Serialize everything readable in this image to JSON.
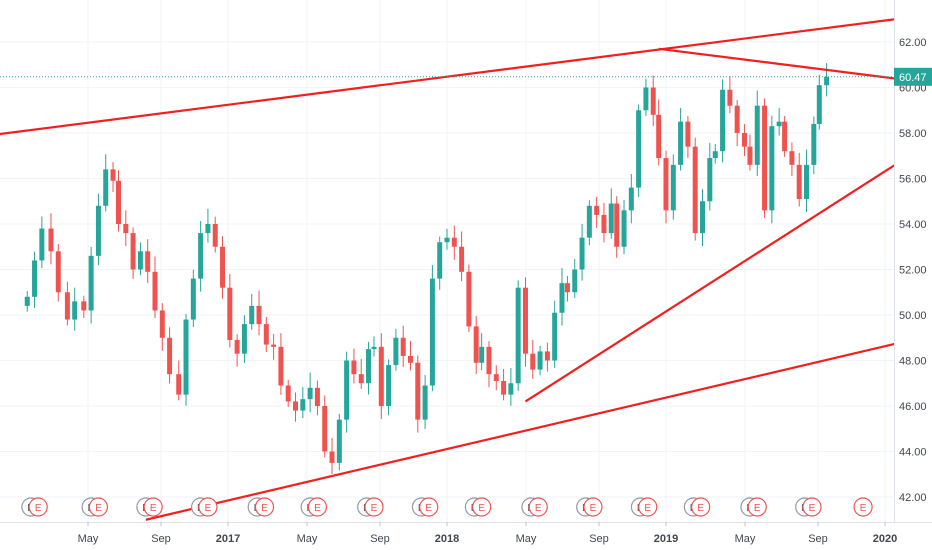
{
  "chart_data": {
    "type": "candlestick",
    "x_axis": {
      "labels": [
        "May",
        "Sep",
        "2017",
        "May",
        "Sep",
        "2018",
        "May",
        "Sep",
        "2019",
        "May",
        "Sep",
        "2020"
      ],
      "label_months": [
        4.33,
        8.33,
        12.0,
        16.33,
        20.33,
        24.0,
        28.33,
        32.33,
        36.0,
        40.33,
        44.33,
        48.0
      ],
      "major_labels": [
        "2017",
        "2018",
        "2019",
        "2020"
      ]
    },
    "y_axis": {
      "ticks": [
        "42.00",
        "44.00",
        "46.00",
        "48.00",
        "50.00",
        "52.00",
        "54.00",
        "56.00",
        "58.00",
        "60.00",
        "62.00"
      ],
      "range": [
        41.0,
        63.0
      ],
      "side": "right"
    },
    "current_price": {
      "value": 60.47,
      "label": "60.47"
    },
    "grid": true,
    "closes": [
      [
        1.0,
        50.8
      ],
      [
        1.4,
        52.4
      ],
      [
        1.8,
        53.8
      ],
      [
        2.3,
        52.8
      ],
      [
        2.7,
        51.0
      ],
      [
        3.2,
        49.8
      ],
      [
        3.6,
        50.6
      ],
      [
        4.1,
        50.2
      ],
      [
        4.5,
        52.6
      ],
      [
        4.9,
        54.8
      ],
      [
        5.3,
        56.4
      ],
      [
        5.7,
        55.9
      ],
      [
        6.0,
        54.0
      ],
      [
        6.4,
        53.6
      ],
      [
        6.8,
        52.0
      ],
      [
        7.2,
        52.8
      ],
      [
        7.6,
        51.9
      ],
      [
        8.0,
        50.2
      ],
      [
        8.4,
        49.0
      ],
      [
        8.8,
        47.4
      ],
      [
        9.3,
        46.5
      ],
      [
        9.7,
        49.8
      ],
      [
        10.1,
        51.6
      ],
      [
        10.5,
        53.6
      ],
      [
        10.9,
        54.0
      ],
      [
        11.3,
        53.0
      ],
      [
        11.7,
        51.2
      ],
      [
        12.1,
        48.9
      ],
      [
        12.5,
        48.3
      ],
      [
        12.9,
        49.6
      ],
      [
        13.3,
        50.4
      ],
      [
        13.7,
        49.6
      ],
      [
        14.1,
        48.7
      ],
      [
        14.5,
        48.6
      ],
      [
        14.9,
        46.9
      ],
      [
        15.3,
        46.2
      ],
      [
        15.7,
        45.8
      ],
      [
        16.1,
        46.3
      ],
      [
        16.5,
        46.8
      ],
      [
        16.9,
        46.0
      ],
      [
        17.3,
        44.0
      ],
      [
        17.7,
        43.5
      ],
      [
        18.1,
        45.4
      ],
      [
        18.5,
        48.0
      ],
      [
        18.9,
        47.4
      ],
      [
        19.3,
        47.0
      ],
      [
        19.7,
        48.5
      ],
      [
        20.0,
        48.6
      ],
      [
        20.4,
        46.0
      ],
      [
        20.8,
        47.8
      ],
      [
        21.2,
        49.0
      ],
      [
        21.6,
        48.2
      ],
      [
        22.0,
        47.9
      ],
      [
        22.4,
        45.4
      ],
      [
        22.8,
        46.9
      ],
      [
        23.2,
        51.6
      ],
      [
        23.6,
        53.2
      ],
      [
        24.0,
        53.4
      ],
      [
        24.4,
        53.0
      ],
      [
        24.8,
        51.9
      ],
      [
        25.2,
        49.5
      ],
      [
        25.6,
        47.9
      ],
      [
        25.9,
        48.6
      ],
      [
        26.3,
        47.4
      ],
      [
        26.7,
        47.1
      ],
      [
        27.1,
        46.5
      ],
      [
        27.5,
        47.0
      ],
      [
        27.9,
        51.2
      ],
      [
        28.3,
        48.3
      ],
      [
        28.7,
        47.6
      ],
      [
        29.1,
        48.4
      ],
      [
        29.5,
        48.0
      ],
      [
        29.9,
        50.1
      ],
      [
        30.3,
        51.4
      ],
      [
        30.6,
        51.0
      ],
      [
        31.0,
        52.0
      ],
      [
        31.4,
        53.4
      ],
      [
        31.8,
        54.8
      ],
      [
        32.2,
        54.4
      ],
      [
        32.6,
        53.6
      ],
      [
        33.0,
        54.9
      ],
      [
        33.3,
        53.0
      ],
      [
        33.7,
        54.6
      ],
      [
        34.1,
        55.6
      ],
      [
        34.5,
        59.0
      ],
      [
        34.9,
        60.0
      ],
      [
        35.3,
        58.8
      ],
      [
        35.6,
        56.9
      ],
      [
        36.0,
        54.6
      ],
      [
        36.4,
        56.6
      ],
      [
        36.8,
        58.5
      ],
      [
        37.2,
        57.4
      ],
      [
        37.6,
        53.6
      ],
      [
        38.0,
        55.0
      ],
      [
        38.4,
        56.9
      ],
      [
        38.7,
        57.2
      ],
      [
        39.1,
        59.9
      ],
      [
        39.5,
        59.2
      ],
      [
        39.9,
        58.0
      ],
      [
        40.3,
        57.4
      ],
      [
        40.6,
        56.6
      ],
      [
        41.0,
        59.2
      ],
      [
        41.4,
        54.6
      ],
      [
        41.8,
        58.3
      ],
      [
        42.2,
        58.5
      ],
      [
        42.5,
        57.2
      ],
      [
        42.9,
        56.6
      ],
      [
        43.3,
        55.1
      ],
      [
        43.7,
        56.6
      ],
      [
        44.1,
        58.4
      ],
      [
        44.4,
        60.1
      ],
      [
        44.8,
        60.47
      ]
    ],
    "trend_lines": [
      {
        "name": "upper-channel",
        "from": [
          -2.0,
          57.8
        ],
        "to": [
          50.5,
          63.2
        ]
      },
      {
        "name": "lower-channel",
        "from": [
          7.5,
          41.0
        ],
        "to": [
          50.5,
          49.1
        ]
      },
      {
        "name": "support-line",
        "from": [
          28.3,
          46.2
        ],
        "to": [
          50.5,
          57.6
        ]
      },
      {
        "name": "resistance-line",
        "from": [
          35.6,
          61.7
        ],
        "to": [
          50.5,
          60.2
        ]
      }
    ],
    "events": [
      {
        "m": 1.2,
        "t": "D"
      },
      {
        "m": 1.6,
        "t": "E"
      },
      {
        "m": 4.5,
        "t": "D"
      },
      {
        "m": 4.9,
        "t": "E"
      },
      {
        "m": 7.5,
        "t": "D"
      },
      {
        "m": 7.9,
        "t": "E"
      },
      {
        "m": 10.5,
        "t": "D"
      },
      {
        "m": 10.9,
        "t": "E"
      },
      {
        "m": 13.6,
        "t": "D"
      },
      {
        "m": 14.0,
        "t": "E"
      },
      {
        "m": 16.5,
        "t": "D"
      },
      {
        "m": 16.9,
        "t": "E"
      },
      {
        "m": 19.6,
        "t": "D"
      },
      {
        "m": 20.0,
        "t": "E"
      },
      {
        "m": 22.6,
        "t": "D"
      },
      {
        "m": 23.0,
        "t": "E"
      },
      {
        "m": 25.5,
        "t": "D"
      },
      {
        "m": 25.9,
        "t": "E"
      },
      {
        "m": 28.6,
        "t": "D"
      },
      {
        "m": 29.0,
        "t": "E"
      },
      {
        "m": 31.6,
        "t": "D"
      },
      {
        "m": 32.0,
        "t": "E"
      },
      {
        "m": 34.6,
        "t": "D"
      },
      {
        "m": 35.0,
        "t": "E"
      },
      {
        "m": 37.5,
        "t": "D"
      },
      {
        "m": 37.9,
        "t": "E"
      },
      {
        "m": 40.6,
        "t": "D"
      },
      {
        "m": 41.0,
        "t": "E"
      },
      {
        "m": 43.6,
        "t": "D"
      },
      {
        "m": 44.0,
        "t": "E"
      },
      {
        "m": 46.8,
        "t": "E"
      }
    ],
    "colors": {
      "up": "#26a69a",
      "down": "#ef5350",
      "trend": "#f21f1f",
      "price_label_bg": "#26a69a",
      "price_line": "#26a69a",
      "grid": "#f0f3fa",
      "axis_text": "#434651"
    }
  }
}
